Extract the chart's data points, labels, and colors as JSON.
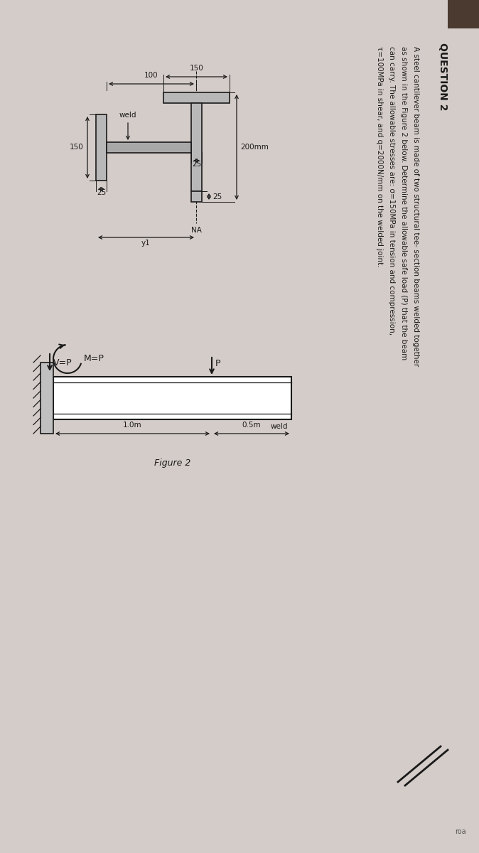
{
  "title": "QUESTION 2",
  "question_text": "A steel cantilever beam is made of two structural tee- section beams welded together\nas shown in the Figure 2 below. Determine the allowable safe load (P) that the beam\ncan carry. The allowable stresses are: σ=150MPa in tension and compression,\nτ=100MPa in shear, and q=2000N/mm on the welded joint.",
  "figure_label": "Figure 2",
  "bg_color": "#d4ccc8",
  "section_fill": "#b8b8b8",
  "web_fill": "#a8a8a8",
  "beam_fill": "#e8e8e8",
  "black": "#1a1a1a",
  "wall_fill": "#c0c0c0",
  "dim_100": "100",
  "dim_150_top": "150",
  "dim_150_left": "150",
  "dim_25_web": "25",
  "dim_25_base": "25",
  "dim_25_lflange": "25",
  "dim_200": "200mm",
  "label_weld_cs": "weld",
  "label_NA": "NA",
  "label_y1": "y1",
  "label_M": "M=P",
  "label_V": "V=P",
  "label_P": "P",
  "label_weld_beam": "weld",
  "dim_1m": "1.0m",
  "dim_05m": "0.5m"
}
